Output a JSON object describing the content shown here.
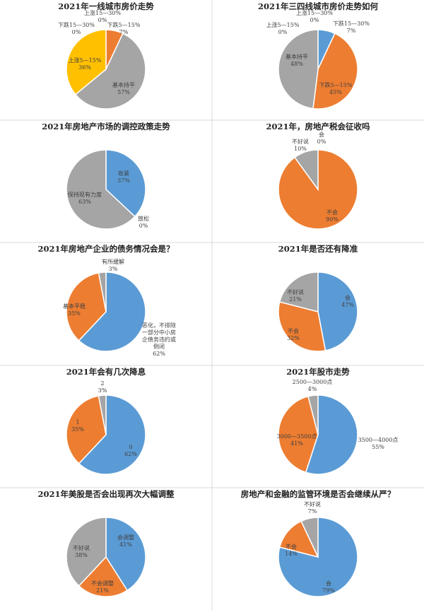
{
  "colors": {
    "blue": "#5b9bd5",
    "orange": "#ed7d31",
    "gray": "#a5a5a5",
    "yellow": "#ffc000"
  },
  "chart_data": [
    {
      "type": "pie",
      "title": "2021年一线城市房价走势",
      "slices": [
        {
          "label": "上涨15—30%",
          "value": 0,
          "color": "blue"
        },
        {
          "label": "下跌5—15%",
          "value": 7,
          "color": "orange"
        },
        {
          "label": "基本持平",
          "value": 57,
          "color": "gray"
        },
        {
          "label": "上涨5—15%",
          "value": 36,
          "color": "yellow"
        },
        {
          "label": "下跌15—30%",
          "value": 0,
          "color": "blue"
        }
      ]
    },
    {
      "type": "pie",
      "title": "2021年三四线城市房价走势如何",
      "slices": [
        {
          "label": "上涨15—30%",
          "value": 0,
          "color": "yellow"
        },
        {
          "label": "下跌15—30%",
          "value": 7,
          "color": "blue"
        },
        {
          "label": "下跌5—15%",
          "value": 45,
          "color": "orange"
        },
        {
          "label": "基本持平",
          "value": 48,
          "color": "gray"
        },
        {
          "label": "上涨5—15%",
          "value": 0,
          "color": "yellow"
        }
      ]
    },
    {
      "type": "pie",
      "title": "2021年房地产市场的调控政策走势",
      "slices": [
        {
          "label": "收紧",
          "value": 37,
          "color": "blue"
        },
        {
          "label": "放松",
          "value": 0,
          "color": "orange"
        },
        {
          "label": "保持现有力度",
          "value": 63,
          "color": "gray"
        }
      ]
    },
    {
      "type": "pie",
      "title": "2021年，房地产税会征收吗",
      "slices": [
        {
          "label": "会",
          "value": 0,
          "color": "blue"
        },
        {
          "label": "不会",
          "value": 90,
          "color": "orange"
        },
        {
          "label": "不好说",
          "value": 10,
          "color": "gray"
        }
      ]
    },
    {
      "type": "pie",
      "title": "2021年房地产企业的债务情况会是？",
      "slices": [
        {
          "label": "恶化，不排除一部分中小房企债务违约或倒闭",
          "value": 62,
          "color": "blue"
        },
        {
          "label": "基本平稳",
          "value": 35,
          "color": "orange"
        },
        {
          "label": "有所缓解",
          "value": 3,
          "color": "gray"
        }
      ]
    },
    {
      "type": "pie",
      "title": "2021年是否还有降准",
      "slices": [
        {
          "label": "会",
          "value": 47,
          "color": "blue"
        },
        {
          "label": "不会",
          "value": 32,
          "color": "orange"
        },
        {
          "label": "不好说",
          "value": 21,
          "color": "gray"
        }
      ]
    },
    {
      "type": "pie",
      "title": "2021年会有几次降息",
      "slices": [
        {
          "label": "0",
          "value": 62,
          "color": "blue"
        },
        {
          "label": "1",
          "value": 35,
          "color": "orange"
        },
        {
          "label": "2",
          "value": 3,
          "color": "gray"
        }
      ]
    },
    {
      "type": "pie",
      "title": "2021年股市走势",
      "slices": [
        {
          "label": "3500—4000点",
          "value": 55,
          "color": "blue"
        },
        {
          "label": "3000—3500点",
          "value": 41,
          "color": "orange"
        },
        {
          "label": "2500—3000点",
          "value": 4,
          "color": "gray"
        }
      ]
    },
    {
      "type": "pie",
      "title": "2021年美股是否会出现再次大幅调整",
      "slices": [
        {
          "label": "会调整",
          "value": 41,
          "color": "blue"
        },
        {
          "label": "不会调整",
          "value": 21,
          "color": "orange"
        },
        {
          "label": "不好说",
          "value": 38,
          "color": "gray"
        }
      ]
    },
    {
      "type": "pie",
      "title": "房地产和金融的监管环境是否会继续从严？",
      "slices": [
        {
          "label": "会",
          "value": 79,
          "color": "blue"
        },
        {
          "label": "不会",
          "value": 14,
          "color": "orange"
        },
        {
          "label": "不好说",
          "value": 7,
          "color": "gray"
        }
      ]
    }
  ]
}
